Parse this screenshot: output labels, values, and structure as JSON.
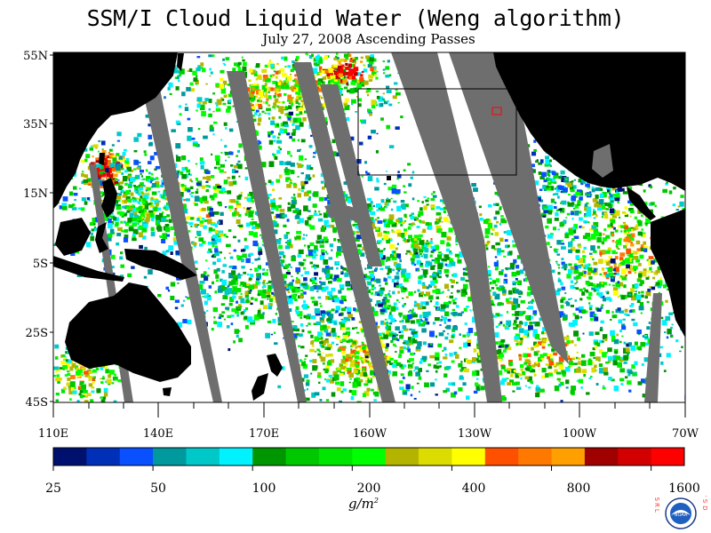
{
  "title": "SSM/I Cloud Liquid Water (Weng algorithm)",
  "subtitle": "July 27, 2008  Ascending Passes",
  "lat_labels": [
    "55N",
    "35N",
    "15N",
    "5S",
    "25S",
    "45S"
  ],
  "lon_labels": [
    "110E",
    "140E",
    "170E",
    "160W",
    "130W",
    "100W",
    "70W"
  ],
  "colorbar": {
    "colors": [
      "#00106e",
      "#0030b8",
      "#0a50ff",
      "#009a9e",
      "#00c8c8",
      "#00f2ff",
      "#009600",
      "#00c800",
      "#00e600",
      "#00ff00",
      "#b4b400",
      "#dcdc00",
      "#ffff00",
      "#ff5000",
      "#ff7800",
      "#ffa000",
      "#a00000",
      "#d20000",
      "#ff0000"
    ],
    "tick_labels": [
      "25",
      "50",
      "100",
      "200",
      "400",
      "800",
      "1600"
    ],
    "units": "g/m",
    "units_exp": "2"
  },
  "colors": {
    "land": "#000000",
    "missing_data": "#6e6e6e",
    "clear_ocean": "#ffffff"
  },
  "logo": {
    "name": "noaa-logo",
    "text": "NOAA",
    "left_text": "ESRL",
    "right_text": "PSD"
  }
}
